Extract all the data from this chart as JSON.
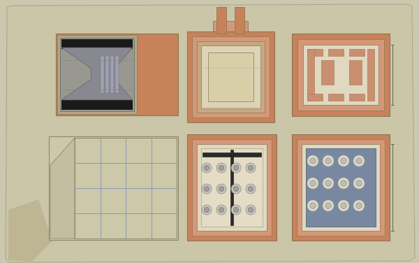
{
  "bg_color": "#ccc8b0",
  "paper_color": "#cec8b0",
  "salmon": "#c8825a",
  "salmon2": "#d49878",
  "salmon3": "#c07048",
  "inner_cream": "#e0d8c0",
  "inner_cream2": "#ddd4b8",
  "gray_section": "#9090a0",
  "gray_mid": "#888898",
  "near_black": "#1a1a1a",
  "dark_brown": "#6b5030",
  "tan_paper": "#ccc4a0",
  "line_color": "#887755",
  "blue_gray": "#8090a8",
  "light_tan": "#d8d0b8",
  "chimney_tan": "#c0a880"
}
